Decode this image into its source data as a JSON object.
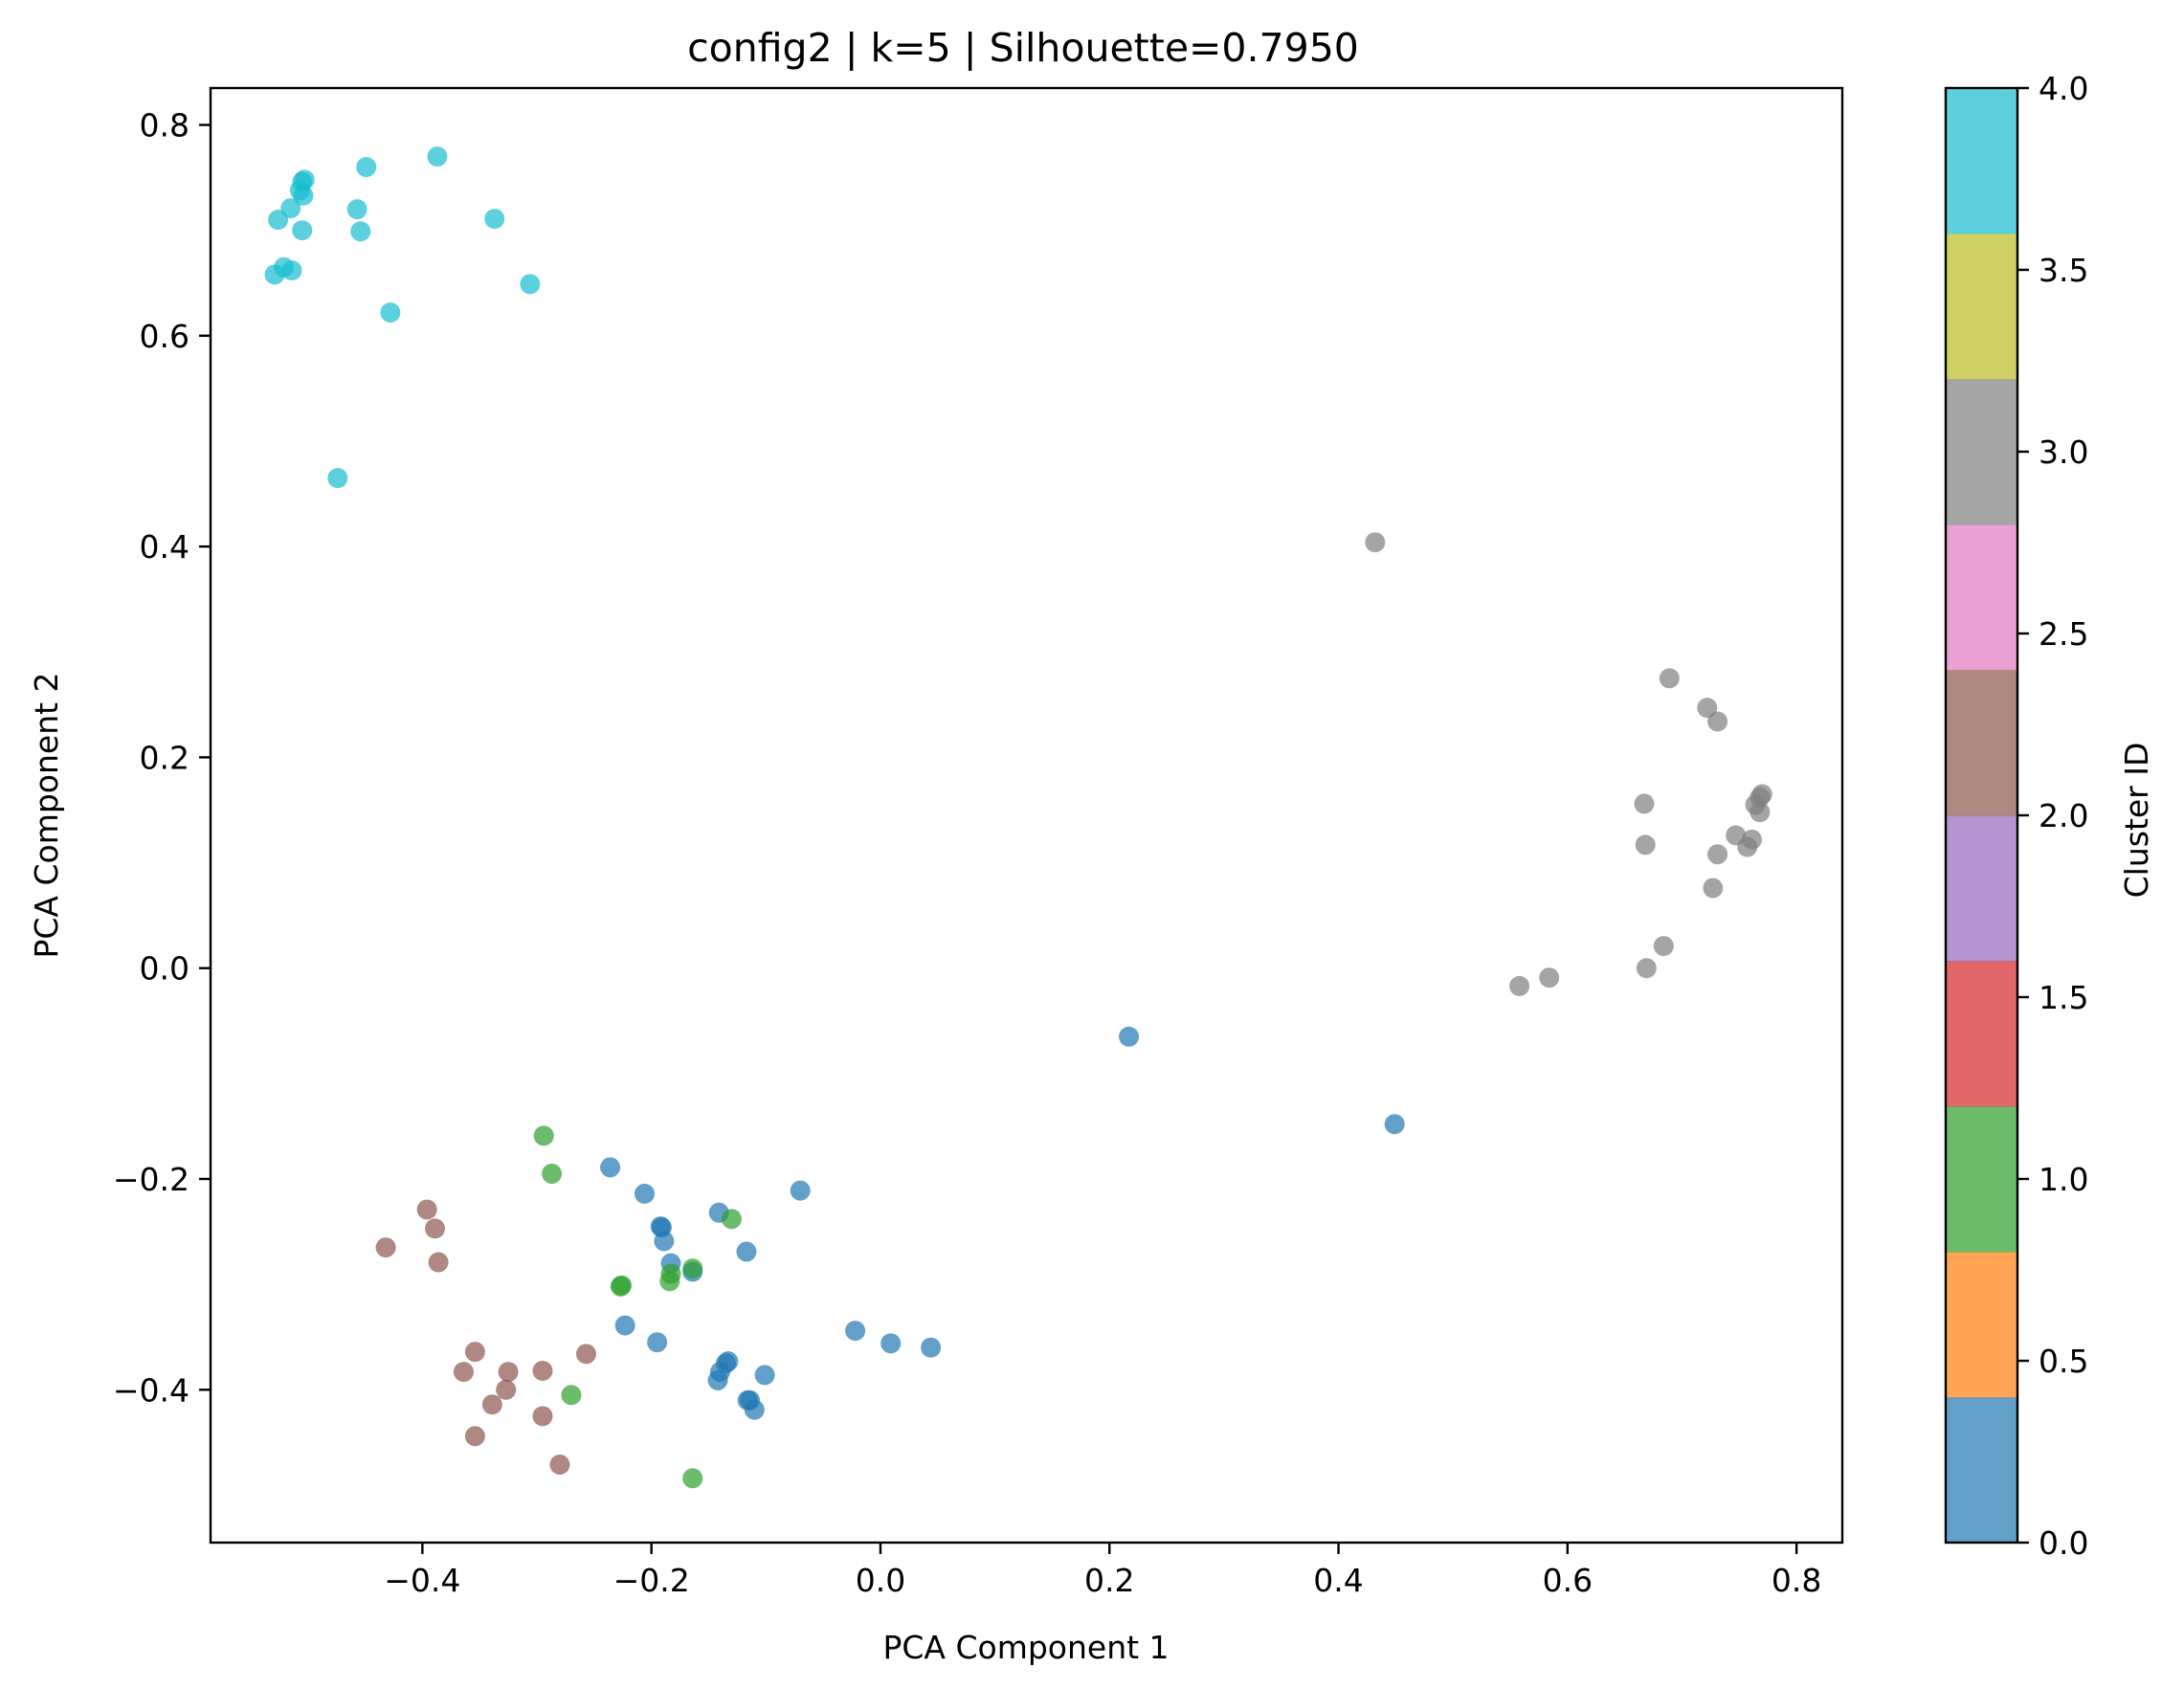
{
  "chart_data": {
    "type": "scatter",
    "title": "config2 | k=5 | Silhouette=0.7950",
    "xlabel": "PCA Component 1",
    "ylabel": "PCA Component 2",
    "xlim": [
      -0.585,
      0.84
    ],
    "ylim": [
      -0.545,
      0.835
    ],
    "xticks": [
      -0.4,
      -0.2,
      0.0,
      0.2,
      0.4,
      0.6,
      0.8
    ],
    "xtick_labels": [
      "−0.4",
      "−0.2",
      "0.0",
      "0.2",
      "0.4",
      "0.6",
      "0.8"
    ],
    "yticks": [
      -0.4,
      -0.2,
      0.0,
      0.2,
      0.4,
      0.6,
      0.8
    ],
    "ytick_labels": [
      "−0.4",
      "−0.2",
      "0.0",
      "0.2",
      "0.4",
      "0.6",
      "0.8"
    ],
    "grid": false,
    "colorbar": {
      "label": "Cluster ID",
      "range": [
        0.0,
        4.0
      ],
      "ticks": [
        0.0,
        0.5,
        1.0,
        1.5,
        2.0,
        2.5,
        3.0,
        3.5,
        4.0
      ],
      "tick_labels": [
        "0.0",
        "0.5",
        "1.0",
        "1.5",
        "2.0",
        "2.5",
        "3.0",
        "3.5",
        "4.0"
      ],
      "colors": [
        "#1f77b4",
        "#ff7f0e",
        "#2ca02c",
        "#d62728",
        "#9467bd",
        "#8c564b",
        "#e377c2",
        "#7f7f7f",
        "#bcbd22",
        "#17becf"
      ]
    },
    "cluster_colors": {
      "0": "#1f77b4",
      "1": "#2ca02c",
      "2": "#8c564b",
      "3": "#7f7f7f",
      "4": "#17becf"
    },
    "series": [
      {
        "cluster": 0,
        "points": [
          [
            0.217,
            -0.065
          ],
          [
            0.449,
            -0.148
          ],
          [
            -0.236,
            -0.189
          ],
          [
            -0.206,
            -0.214
          ],
          [
            -0.07,
            -0.211
          ],
          [
            -0.192,
            -0.245
          ],
          [
            -0.191,
            -0.246
          ],
          [
            -0.141,
            -0.232
          ],
          [
            -0.189,
            -0.259
          ],
          [
            -0.117,
            -0.269
          ],
          [
            -0.183,
            -0.28
          ],
          [
            -0.164,
            -0.288
          ],
          [
            -0.223,
            -0.339
          ],
          [
            -0.195,
            -0.355
          ],
          [
            -0.022,
            -0.344
          ],
          [
            0.009,
            -0.356
          ],
          [
            0.044,
            -0.36
          ],
          [
            -0.135,
            -0.375
          ],
          [
            -0.133,
            -0.373
          ],
          [
            -0.14,
            -0.383
          ],
          [
            -0.101,
            -0.386
          ],
          [
            -0.142,
            -0.391
          ],
          [
            -0.116,
            -0.41
          ],
          [
            -0.114,
            -0.41
          ],
          [
            -0.11,
            -0.419
          ]
        ]
      },
      {
        "cluster": 1,
        "points": [
          [
            -0.294,
            -0.159
          ],
          [
            -0.287,
            -0.195
          ],
          [
            -0.13,
            -0.238
          ],
          [
            -0.164,
            -0.285
          ],
          [
            -0.183,
            -0.29
          ],
          [
            -0.184,
            -0.297
          ],
          [
            -0.226,
            -0.301
          ],
          [
            -0.227,
            -0.302
          ],
          [
            -0.27,
            -0.405
          ],
          [
            -0.164,
            -0.484
          ]
        ]
      },
      {
        "cluster": 2,
        "points": [
          [
            -0.396,
            -0.229
          ],
          [
            -0.389,
            -0.247
          ],
          [
            -0.432,
            -0.265
          ],
          [
            -0.386,
            -0.279
          ],
          [
            -0.354,
            -0.364
          ],
          [
            -0.257,
            -0.366
          ],
          [
            -0.364,
            -0.383
          ],
          [
            -0.325,
            -0.383
          ],
          [
            -0.295,
            -0.382
          ],
          [
            -0.327,
            -0.4
          ],
          [
            -0.339,
            -0.414
          ],
          [
            -0.295,
            -0.425
          ],
          [
            -0.354,
            -0.444
          ],
          [
            -0.28,
            -0.471
          ]
        ]
      },
      {
        "cluster": 3,
        "points": [
          [
            0.432,
            0.404
          ],
          [
            0.689,
            0.275
          ],
          [
            0.722,
            0.247
          ],
          [
            0.731,
            0.234
          ],
          [
            0.77,
            0.165
          ],
          [
            0.768,
            0.162
          ],
          [
            0.764,
            0.155
          ],
          [
            0.667,
            0.156
          ],
          [
            0.768,
            0.148
          ],
          [
            0.747,
            0.126
          ],
          [
            0.761,
            0.122
          ],
          [
            0.757,
            0.115
          ],
          [
            0.668,
            0.117
          ],
          [
            0.731,
            0.108
          ],
          [
            0.727,
            0.076
          ],
          [
            0.684,
            0.021
          ],
          [
            0.669,
            0.0
          ],
          [
            0.584,
            -0.009
          ],
          [
            0.558,
            -0.017
          ]
        ]
      },
      {
        "cluster": 4,
        "points": [
          [
            -0.387,
            0.77
          ],
          [
            -0.449,
            0.76
          ],
          [
            -0.503,
            0.748
          ],
          [
            -0.505,
            0.746
          ],
          [
            -0.507,
            0.738
          ],
          [
            -0.504,
            0.733
          ],
          [
            -0.515,
            0.721
          ],
          [
            -0.457,
            0.72
          ],
          [
            -0.526,
            0.71
          ],
          [
            -0.337,
            0.711
          ],
          [
            -0.505,
            0.7
          ],
          [
            -0.454,
            0.699
          ],
          [
            -0.521,
            0.665
          ],
          [
            -0.514,
            0.662
          ],
          [
            -0.529,
            0.658
          ],
          [
            -0.306,
            0.649
          ],
          [
            -0.428,
            0.622
          ],
          [
            -0.474,
            0.465
          ]
        ]
      }
    ]
  }
}
